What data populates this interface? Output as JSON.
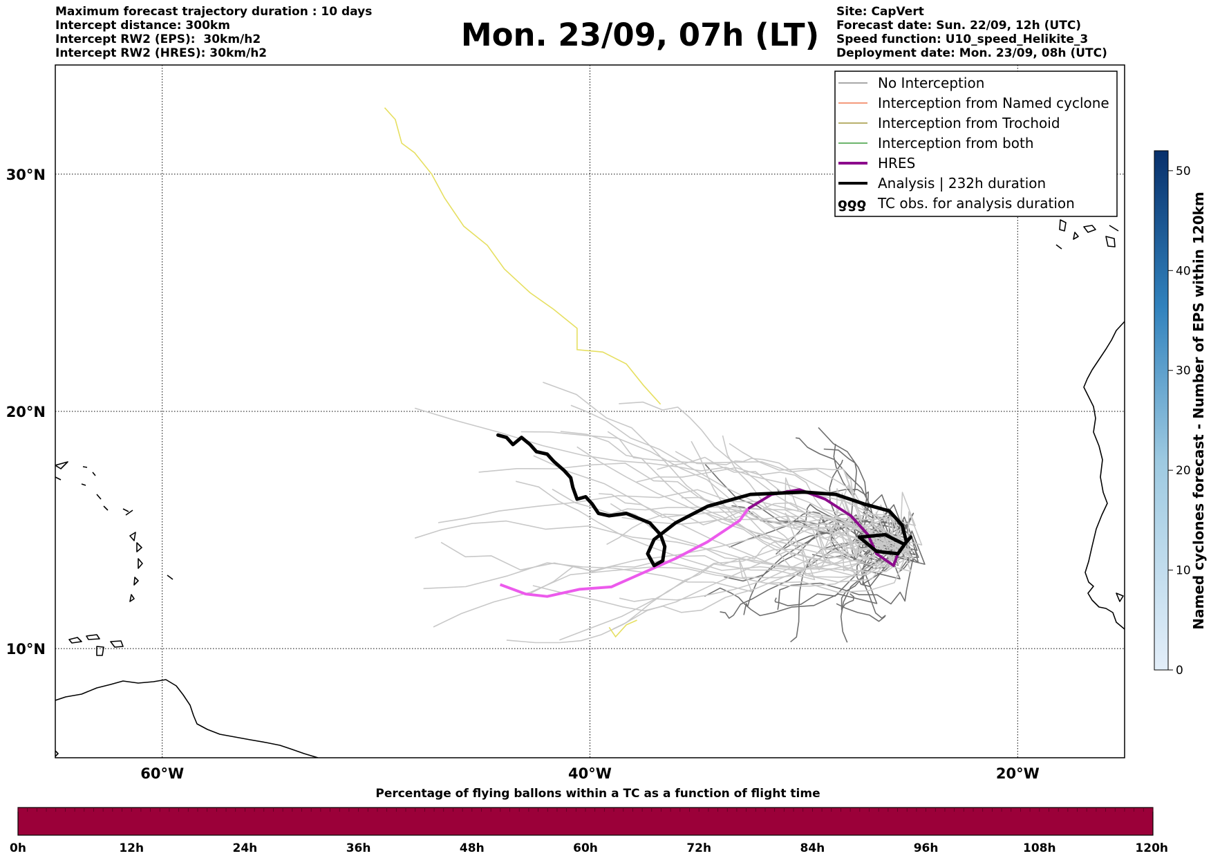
{
  "header_left": [
    "Maximum forecast trajectory duration : 10 days",
    "Intercept distance: 300km",
    "Intercept RW2 (EPS):  30km/h2",
    "Intercept RW2 (HRES): 30km/h2"
  ],
  "header_right": [
    "Site: CapVert",
    "Forecast date: Sun. 22/09, 12h (UTC)",
    "Speed function: U10_speed_Helikite_3",
    "Deployment date: Mon. 23/09, 08h (UTC)"
  ],
  "title": "Mon. 23/09, 07h (LT)",
  "map": {
    "lon_range": [
      -65,
      -15
    ],
    "lat_range": [
      5.4,
      34.6
    ],
    "lon_ticks": [
      {
        "value": -60,
        "label": "60°W"
      },
      {
        "value": -40,
        "label": "40°W"
      },
      {
        "value": -20,
        "label": "20°W"
      }
    ],
    "lat_ticks": [
      {
        "value": 10,
        "label": "10°N"
      },
      {
        "value": 20,
        "label": "20°N"
      },
      {
        "value": 30,
        "label": "30°N"
      }
    ],
    "grid": "dotted"
  },
  "legend": [
    {
      "label": "No Interception",
      "color": "#8c8c8c",
      "style": "line"
    },
    {
      "label": "Interception from Named cyclone",
      "color": "#f07850",
      "style": "line"
    },
    {
      "label": "Interception from Trochoid",
      "color": "#a0963c",
      "style": "line"
    },
    {
      "label": "Interception from both",
      "color": "#3c9c3c",
      "style": "line"
    },
    {
      "label": "HRES",
      "color": "#8c0a8c",
      "style": "thick"
    },
    {
      "label": "Analysis | 232h duration",
      "color": "#000000",
      "style": "thick"
    },
    {
      "label": "TC obs. for analysis duration",
      "color": "#000000",
      "style": "tc-symbol"
    }
  ],
  "colorbar": {
    "label": "Named cyclones forecast - Number of EPS within 120km",
    "min": 0,
    "max": 52,
    "ticks": [
      0,
      10,
      20,
      30,
      40,
      50
    ],
    "color_low": "#e3eef9",
    "color_high": "#08306b"
  },
  "bottom_bar": {
    "title": "Percentage of flying ballons within a TC as a function of flight time",
    "ticks": [
      "0h",
      "12h",
      "24h",
      "36h",
      "48h",
      "60h",
      "72h",
      "84h",
      "96h",
      "108h",
      "120h"
    ],
    "color": "#9b0039"
  },
  "trajectories": {
    "analysis": {
      "color": "#000000",
      "points": [
        [
          -44.3,
          19.0
        ],
        [
          -43.9,
          18.9
        ],
        [
          -43.6,
          18.6
        ],
        [
          -43.2,
          18.9
        ],
        [
          -42.8,
          18.6
        ],
        [
          -42.5,
          18.3
        ],
        [
          -42.0,
          18.2
        ],
        [
          -41.7,
          17.9
        ],
        [
          -41.2,
          17.5
        ],
        [
          -40.9,
          17.2
        ],
        [
          -40.8,
          16.8
        ],
        [
          -40.6,
          16.3
        ],
        [
          -40.2,
          16.4
        ],
        [
          -39.9,
          16.1
        ],
        [
          -39.6,
          15.7
        ],
        [
          -39.1,
          15.6
        ],
        [
          -38.3,
          15.7
        ],
        [
          -37.2,
          15.3
        ],
        [
          -36.7,
          14.8
        ],
        [
          -36.5,
          14.3
        ],
        [
          -36.6,
          13.7
        ],
        [
          -37.0,
          13.5
        ],
        [
          -37.3,
          14.0
        ],
        [
          -37.0,
          14.6
        ],
        [
          -36.0,
          15.3
        ],
        [
          -34.5,
          16.0
        ],
        [
          -32.5,
          16.5
        ],
        [
          -30.0,
          16.6
        ],
        [
          -28.5,
          16.5
        ],
        [
          -27.2,
          16.1
        ],
        [
          -26.0,
          15.8
        ],
        [
          -25.4,
          15.2
        ],
        [
          -25.2,
          14.5
        ],
        [
          -25.6,
          14.0
        ],
        [
          -26.6,
          14.1
        ],
        [
          -27.4,
          14.7
        ],
        [
          -26.2,
          14.8
        ],
        [
          -25.3,
          14.4
        ],
        [
          -25.0,
          14.7
        ]
      ]
    },
    "hres": {
      "color": "#8c0a8c",
      "points": [
        [
          -44.2,
          12.7
        ],
        [
          -43.0,
          12.3
        ],
        [
          -42.0,
          12.2
        ],
        [
          -40.5,
          12.5
        ],
        [
          -39.0,
          12.6
        ],
        [
          -37.5,
          13.2
        ],
        [
          -36.0,
          13.8
        ],
        [
          -34.5,
          14.5
        ],
        [
          -33.0,
          15.4
        ],
        [
          -32.6,
          15.9
        ],
        [
          -31.5,
          16.5
        ],
        [
          -30.2,
          16.7
        ],
        [
          -29.0,
          16.3
        ],
        [
          -27.8,
          15.6
        ],
        [
          -27.0,
          14.8
        ],
        [
          -26.6,
          14.0
        ],
        [
          -25.8,
          13.5
        ],
        [
          -25.6,
          14.0
        ]
      ]
    },
    "hres_early_color": "#ec5aec",
    "trochoid": {
      "color": "#e6df60",
      "points": [
        [
          -49.6,
          32.8
        ],
        [
          -49.1,
          32.3
        ],
        [
          -48.8,
          31.3
        ],
        [
          -48.2,
          30.9
        ],
        [
          -47.4,
          30.0
        ],
        [
          -46.8,
          29.0
        ],
        [
          -45.9,
          27.8
        ],
        [
          -44.8,
          27.0
        ],
        [
          -44.0,
          26.0
        ],
        [
          -42.8,
          25.0
        ],
        [
          -41.7,
          24.3
        ],
        [
          -40.6,
          23.5
        ],
        [
          -40.6,
          22.6
        ],
        [
          -39.4,
          22.5
        ],
        [
          -38.3,
          22.0
        ],
        [
          -37.5,
          21.1
        ],
        [
          -36.7,
          20.3
        ]
      ]
    },
    "trochoid_short": {
      "color": "#e6df60",
      "points": [
        [
          -39.1,
          10.9
        ],
        [
          -38.8,
          10.5
        ],
        [
          -38.3,
          11.0
        ],
        [
          -37.8,
          11.2
        ]
      ]
    }
  }
}
